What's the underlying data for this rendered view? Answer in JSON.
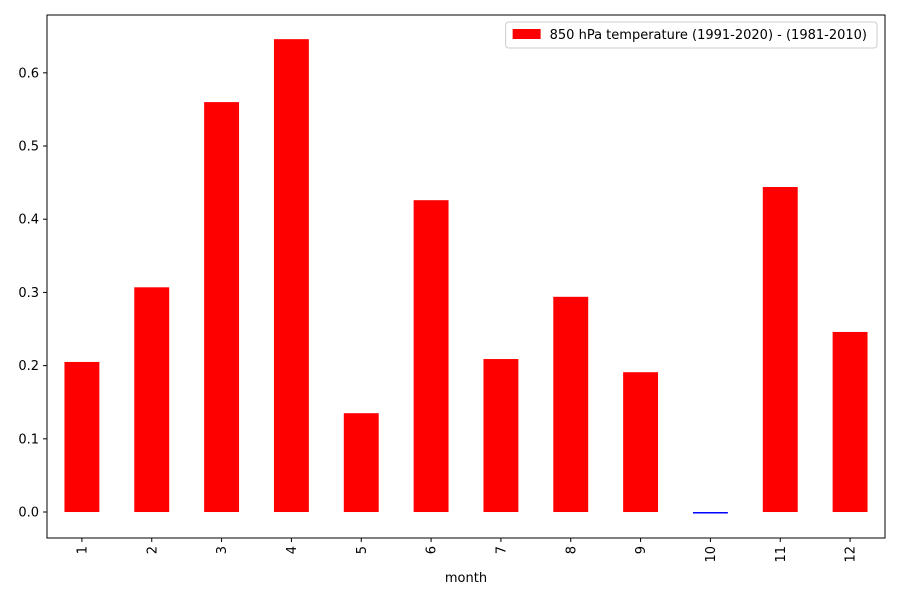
{
  "chart_data": {
    "type": "bar",
    "categories": [
      "1",
      "2",
      "3",
      "4",
      "5",
      "6",
      "7",
      "8",
      "9",
      "10",
      "11",
      "12"
    ],
    "x_label": "month",
    "series": [
      {
        "name": "850 hPa temperature (1991-2020) - (1981-2010)",
        "color": "#ff0000",
        "bar_colors": [
          "#ff0000",
          "#ff0000",
          "#ff0000",
          "#ff0000",
          "#ff0000",
          "#ff0000",
          "#ff0000",
          "#ff0000",
          "#ff0000",
          "#0000ff",
          "#ff0000",
          "#ff0000"
        ],
        "values": [
          0.205,
          0.307,
          0.56,
          0.646,
          0.135,
          0.426,
          0.209,
          0.294,
          0.191,
          -0.002,
          0.444,
          0.246
        ]
      }
    ],
    "ylim": [
      -0.0355,
      0.679
    ],
    "yticks": [
      {
        "value": 0,
        "label": "0.0"
      },
      0.1,
      0.2,
      0.3,
      0.4,
      0.5,
      0.6
    ],
    "grid": false,
    "legend": "upper right"
  }
}
